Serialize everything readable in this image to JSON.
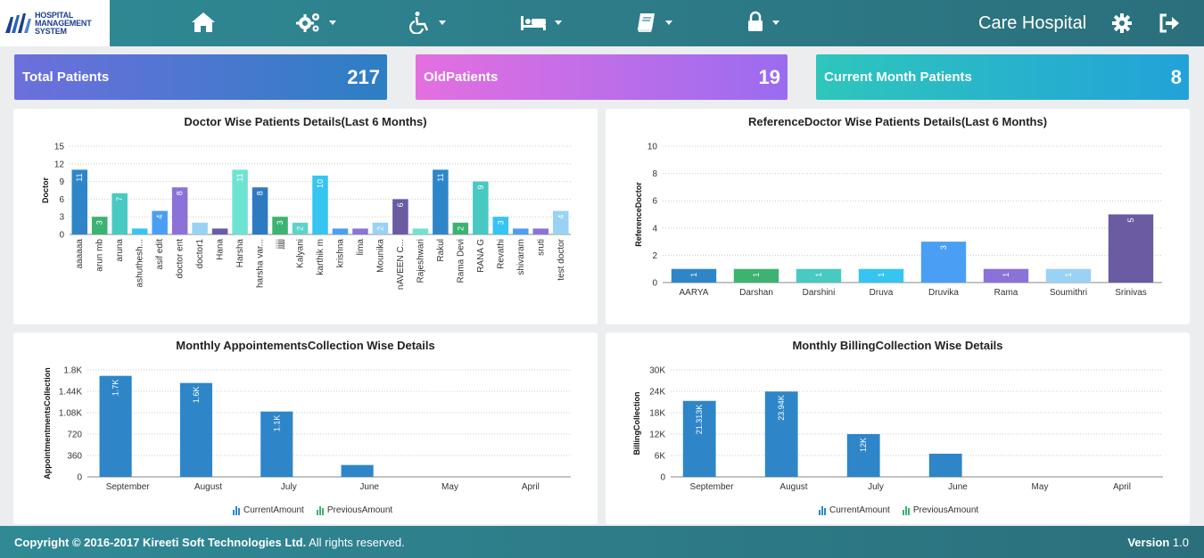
{
  "header": {
    "logo_lines": [
      "HOSPITAL",
      "MANAGEMENT",
      "SYSTEM"
    ],
    "brand": "Care Hospital",
    "nav": [
      {
        "icon": "home-icon",
        "has_caret": false
      },
      {
        "icon": "cogs-icon",
        "has_caret": true
      },
      {
        "icon": "wheelchair-icon",
        "has_caret": true
      },
      {
        "icon": "bed-icon",
        "has_caret": true
      },
      {
        "icon": "book-icon",
        "has_caret": true
      },
      {
        "icon": "lock-icon",
        "has_caret": true
      }
    ],
    "settings_icon": "gear-icon",
    "logout_icon": "sign-out-icon"
  },
  "stats": [
    {
      "label": "Total Patients",
      "value": "217",
      "color_from": "#6d6fdc",
      "color_to": "#2c7fc4"
    },
    {
      "label": "OldPatients",
      "value": "19",
      "color_from": "#e46fe0",
      "color_to": "#9a6cf0"
    },
    {
      "label": "Current Month Patients",
      "value": "8",
      "color_from": "#2ec6bc",
      "color_to": "#22a2d8"
    }
  ],
  "panels": {
    "doctor": {
      "title": "Doctor Wise Patients Details(Last 6 Months)"
    },
    "refdoctor": {
      "title": "ReferenceDoctor Wise Patients Details(Last 6 Months)"
    },
    "appointments": {
      "title": "Monthly AppointementsCollection Wise Details"
    },
    "billing": {
      "title": "Monthly BillingCollection Wise Details"
    }
  },
  "legend": {
    "current": "CurrentAmount",
    "previous": "PreviousAmount"
  },
  "footer": {
    "copyright_bold": "Copyright © 2016-2017 Kireeti Soft Technologies Ltd.",
    "copyright_rest": " All rights reserved.",
    "version_label": "Version",
    "version_value": "1.0"
  },
  "chart_data": [
    {
      "type": "bar",
      "title": "Doctor Wise Patients Details(Last 6 Months)",
      "ylabel": "Doctor",
      "ylim": [
        0,
        15
      ],
      "yticks": [
        "0",
        "3",
        "6",
        "9",
        "12",
        "15"
      ],
      "categories": [
        "aaaaaa",
        "arun mb",
        "aruna",
        "ashuthesh...",
        "asif edit",
        "doctor ent",
        "doctor1",
        "Hana",
        "Harsha",
        "harsha var...",
        "jjjjj",
        "Kalyani",
        "karthik m",
        "krishna",
        "lima",
        "Mounika",
        "nAVEEN C...",
        "Rajeshwari",
        "Rakul",
        "Rama Devi",
        "RANA G",
        "Revathi",
        "shivaram",
        "sruti",
        "test doctor"
      ],
      "values": [
        11,
        3,
        7,
        1,
        4,
        8,
        2,
        1,
        11,
        8,
        3,
        2,
        10,
        1,
        1,
        2,
        6,
        1,
        11,
        2,
        9,
        3,
        1,
        1,
        4
      ],
      "bar_labels": [
        "11",
        "3",
        "7",
        "",
        "4",
        "8",
        "",
        "",
        "11",
        "8",
        "3",
        "2",
        "10",
        "",
        "",
        "2",
        "6",
        "",
        "11",
        "2",
        "9",
        "3",
        "",
        "",
        "4"
      ],
      "colors": [
        "#2e86c9",
        "#3cb371",
        "#48c9c2",
        "#36c5f0",
        "#4a9ff5",
        "#8b72d8",
        "#99d2f5",
        "#6a5ba3",
        "#6fe3d2",
        "#2e7ac0",
        "#3cb371",
        "#5ed3c9",
        "#36c5f0",
        "#4a9ff5",
        "#8b72d8",
        "#99d2f5",
        "#6a5ba3",
        "#6fe3d2",
        "#2e86c9",
        "#3cb371",
        "#48c9c2",
        "#36c5f0",
        "#4a9ff5",
        "#8b72d8",
        "#99d2f5"
      ],
      "grid": true
    },
    {
      "type": "bar",
      "title": "ReferenceDoctor Wise Patients Details(Last 6 Months)",
      "ylabel": "ReferenceDoctor",
      "ylim": [
        0,
        10
      ],
      "yticks": [
        "0",
        "2",
        "4",
        "6",
        "8",
        "10"
      ],
      "categories": [
        "AARYA",
        "Darshan",
        "Darshini",
        "Druva",
        "Druvika",
        "Rama",
        "Soumithri",
        "Srinivas"
      ],
      "values": [
        1,
        1,
        1,
        1,
        3,
        1,
        1,
        5
      ],
      "bar_labels": [
        "1",
        "1",
        "1",
        "1",
        "3",
        "1",
        "1",
        "5"
      ],
      "colors": [
        "#2e86c9",
        "#3cb371",
        "#48c9c2",
        "#36c5f0",
        "#4a9ff5",
        "#8b72d8",
        "#99d2f5",
        "#6a5ba3"
      ],
      "grid": true
    },
    {
      "type": "bar",
      "title": "Monthly AppointementsCollection Wise Details",
      "ylabel": "AppointmentmentsCollection",
      "ylim": [
        0,
        1800
      ],
      "yticks": [
        "0",
        "360",
        "720",
        "1.08K",
        "1.44K",
        "1.8K"
      ],
      "categories": [
        "September",
        "August",
        "July",
        "June",
        "May",
        "April"
      ],
      "series": [
        {
          "name": "CurrentAmount",
          "values": [
            1700,
            1580,
            1100,
            200,
            0,
            0
          ],
          "labels": [
            "1.7K",
            "1.6K",
            "1.1K",
            "",
            "",
            ""
          ]
        },
        {
          "name": "PreviousAmount",
          "values": [
            0,
            0,
            0,
            0,
            0,
            0
          ],
          "labels": [
            "",
            "",
            "",
            "",
            "",
            ""
          ]
        }
      ],
      "colors": [
        "#2e86c9"
      ],
      "grid": true,
      "legend": "bottom"
    },
    {
      "type": "bar",
      "title": "Monthly BillingCollection Wise Details",
      "ylabel": "BillingCollection",
      "ylim": [
        0,
        30000
      ],
      "yticks": [
        "0",
        "6K",
        "12K",
        "18K",
        "24K",
        "30K"
      ],
      "categories": [
        "September",
        "August",
        "July",
        "June",
        "May",
        "April"
      ],
      "series": [
        {
          "name": "CurrentAmount",
          "values": [
            21313,
            23940,
            12000,
            6500,
            0,
            0
          ],
          "labels": [
            "21.313K",
            "23.94K",
            "12K",
            "",
            "",
            ""
          ]
        },
        {
          "name": "PreviousAmount",
          "values": [
            0,
            0,
            0,
            0,
            0,
            0
          ],
          "labels": [
            "",
            "",
            "",
            "",
            "",
            ""
          ]
        }
      ],
      "colors": [
        "#2e86c9"
      ],
      "grid": true,
      "legend": "bottom"
    }
  ]
}
